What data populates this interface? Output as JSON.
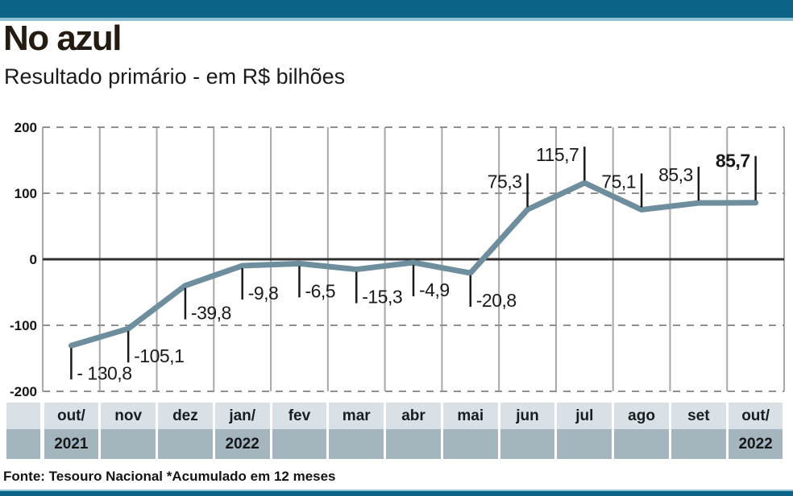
{
  "colors": {
    "accent": "#0c6388",
    "accent_light": "#8fc0d6",
    "line": "#6e8e9e",
    "row_light": "#d9e1e6",
    "row_dark": "#a4b5bd",
    "grid": "#a8a8a8",
    "grid_dashed": "#8f8f8f",
    "zero_line": "#2f2f2f"
  },
  "header": {
    "title": "No azul",
    "subtitle": "Resultado primário - em R$ bilhões"
  },
  "chart_data": {
    "type": "line",
    "title": "No azul",
    "subtitle": "Resultado primário - em R$ bilhões",
    "unit": "R$ bilhões",
    "categories": [
      "out/2021",
      "nov/2021",
      "dez/2021",
      "jan/2022",
      "fev/2022",
      "mar/2022",
      "abr/2022",
      "mai/2022",
      "jun/2022",
      "jul/2022",
      "ago/2022",
      "set/2022",
      "out/2022"
    ],
    "values": [
      -130.8,
      -105.1,
      -39.8,
      -9.8,
      -6.5,
      -15.3,
      -4.9,
      -20.8,
      75.3,
      115.7,
      75.1,
      85.3,
      85.7
    ],
    "point_labels": [
      "- 130,8",
      "-105,1",
      "-39,8",
      "-9,8",
      "-6,5",
      "-15,3",
      "-4,9",
      "-20,8",
      "75,3",
      "115,7",
      "75,1",
      "85,3",
      "85,7"
    ],
    "last_point_bold": true,
    "y_ticks": [
      200,
      100,
      0,
      -100,
      -200
    ],
    "ylim": [
      -200,
      200
    ],
    "grid": "horizontal dashed, vertical solid column separators",
    "legend": "none"
  },
  "x_axis": {
    "columns": [
      {
        "month": "out/",
        "year": "2021"
      },
      {
        "month": "nov",
        "year": ""
      },
      {
        "month": "dez",
        "year": ""
      },
      {
        "month": "jan/",
        "year": "2022"
      },
      {
        "month": "fev",
        "year": ""
      },
      {
        "month": "mar",
        "year": ""
      },
      {
        "month": "abr",
        "year": ""
      },
      {
        "month": "mai",
        "year": ""
      },
      {
        "month": "jun",
        "year": ""
      },
      {
        "month": "jul",
        "year": ""
      },
      {
        "month": "ago",
        "year": ""
      },
      {
        "month": "set",
        "year": ""
      },
      {
        "month": "out/",
        "year": "2022"
      }
    ]
  },
  "footer": {
    "source": "Fonte: Tesouro Nacional *Acumulado em 12 meses"
  }
}
